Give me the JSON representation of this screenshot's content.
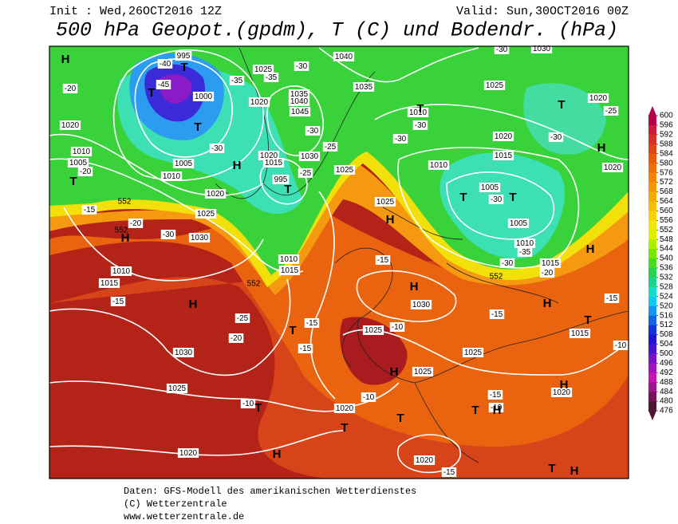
{
  "header": {
    "init": "Init : Wed,26OCT2016 12Z",
    "valid": "Valid: Sun,30OCT2016 00Z",
    "title": "500 hPa Geopot.(gpdm), T (C) und Bodendr. (hPa)"
  },
  "map": {
    "isobar_labels": [
      1020,
      1010,
      1005,
      1010,
      1005,
      1020,
      1025,
      1030,
      1010,
      1015,
      1030,
      1025,
      1020,
      1025,
      1020,
      1035,
      1040,
      1045,
      1030,
      1020,
      1015,
      1040,
      1035,
      1025,
      1025,
      1010,
      1015,
      1010,
      1010,
      1020,
      1015,
      1005,
      1005,
      1010,
      1015,
      1025,
      1020,
      1020,
      1030,
      1025,
      1020,
      1025,
      1025,
      1015,
      1020,
      1020,
      1000,
      995,
      1030,
      995
    ],
    "temperature_labels": [
      -40,
      -45,
      -35,
      -35,
      -30,
      -30,
      -30,
      -25,
      -25,
      -20,
      -20,
      -15,
      -20,
      -30,
      -30,
      -30,
      -30,
      -25,
      -30,
      -30,
      -35,
      -30,
      -20,
      -15,
      -15,
      -15,
      -15,
      -25,
      -20,
      -10,
      -10,
      -10,
      -15,
      -10,
      -15,
      -15,
      -10,
      -15
    ],
    "geopotential_labels": [
      552,
      552,
      552,
      552
    ],
    "centers": [
      "H",
      "T",
      "T",
      "T",
      "T",
      "H",
      "T",
      "T",
      "T",
      "H",
      "T",
      "T",
      "H",
      "H",
      "H",
      "H",
      "T",
      "H",
      "T",
      "H",
      "T",
      "T",
      "T",
      "H",
      "H",
      "T",
      "H",
      "T",
      "H",
      "H"
    ]
  },
  "colorbar": {
    "ticks": [
      600,
      596,
      592,
      588,
      584,
      580,
      576,
      572,
      568,
      564,
      560,
      556,
      552,
      548,
      544,
      540,
      536,
      532,
      528,
      524,
      520,
      516,
      512,
      508,
      504,
      500,
      496,
      492,
      488,
      484,
      480,
      476
    ],
    "colors": [
      "#b4004b",
      "#c81e3c",
      "#d23228",
      "#dc4614",
      "#e65a0a",
      "#f06e0a",
      "#f5820a",
      "#f5960a",
      "#f5aa0a",
      "#f5be0a",
      "#f5d20a",
      "#f0e60a",
      "#dcf000",
      "#aaf000",
      "#78e600",
      "#46dc1e",
      "#28d250",
      "#1ed28c",
      "#14dcc8",
      "#14c8f0",
      "#1496f0",
      "#1464e6",
      "#1432dc",
      "#1e14d2",
      "#4614c8",
      "#7814c8",
      "#a014be",
      "#c814b4",
      "#a0148c",
      "#78145a",
      "#501432"
    ]
  },
  "footer": {
    "lines": [
      "Daten: GFS-Modell des amerikanischen Wetterdienstes",
      "(C) Wetterzentrale",
      "www.wetterzentrale.de"
    ]
  }
}
